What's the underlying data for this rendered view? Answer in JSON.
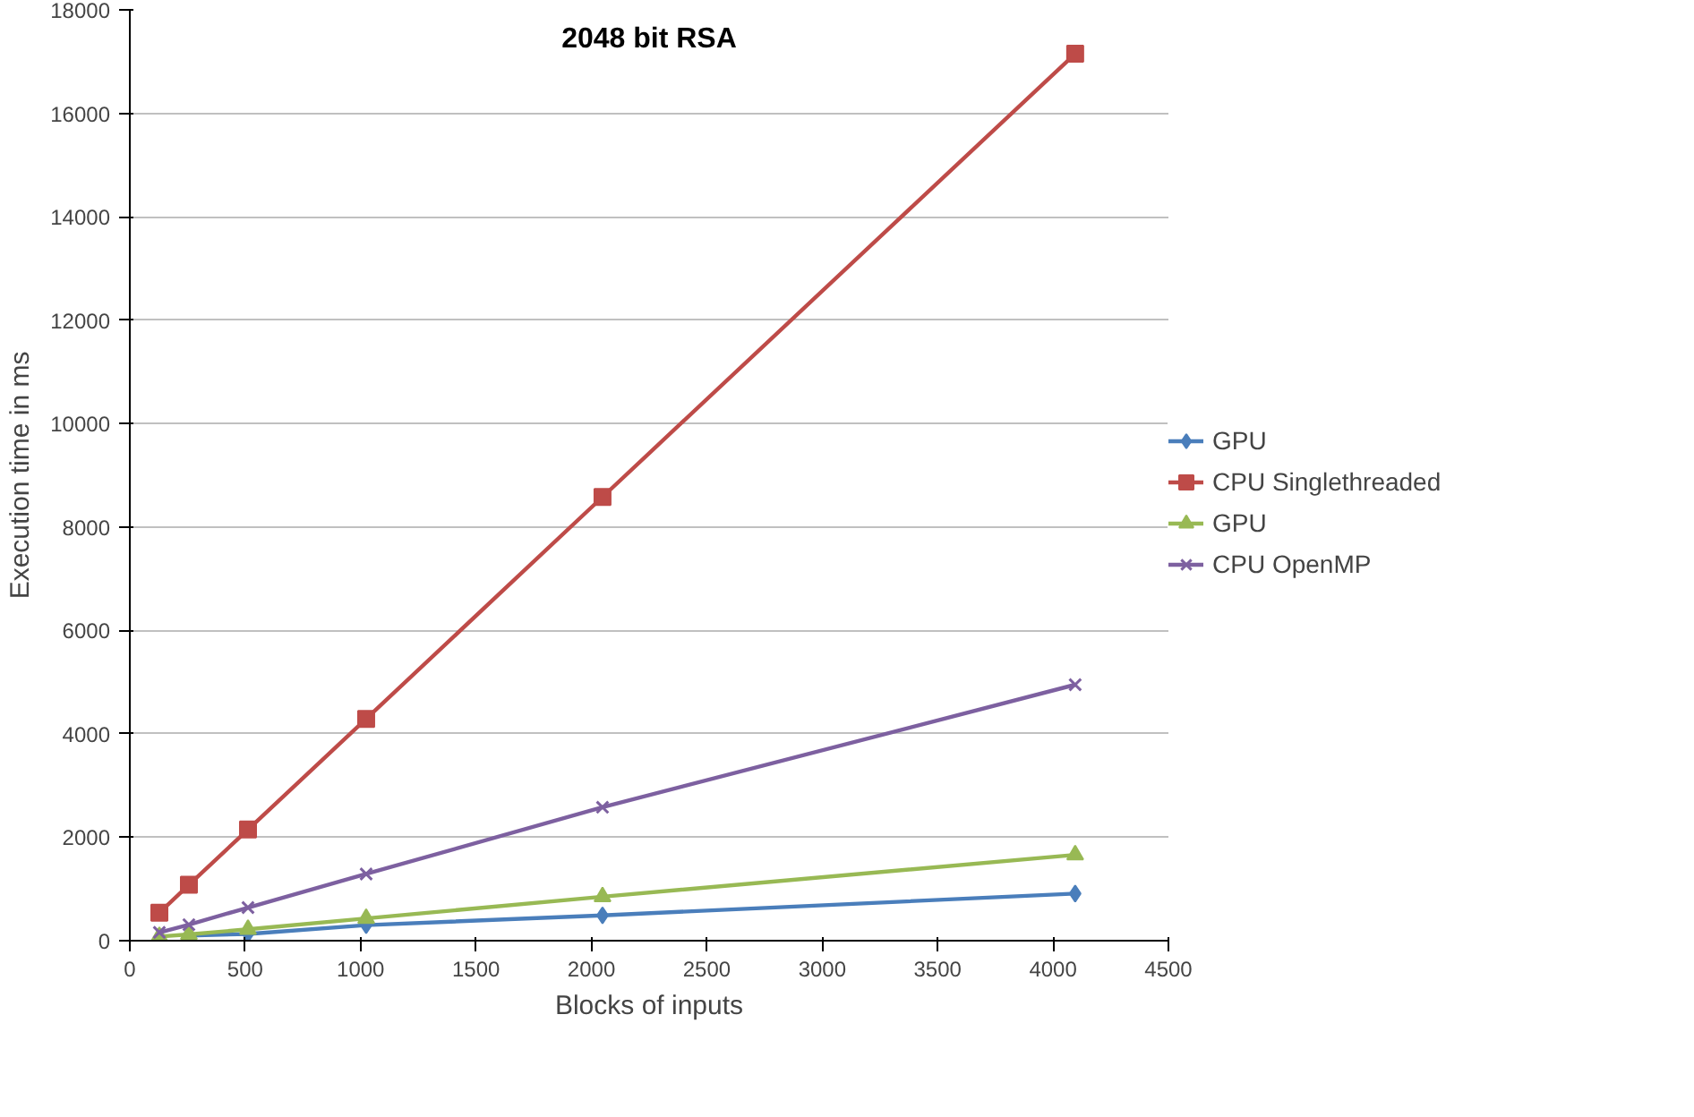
{
  "chart_data": {
    "type": "line",
    "title": "2048 bit RSA",
    "xlabel": "Blocks of inputs",
    "ylabel": "Execution time in ms",
    "x": [
      128,
      256,
      512,
      1024,
      2048,
      4096
    ],
    "xlim": [
      0,
      4500
    ],
    "xticks": [
      0,
      500,
      1000,
      1500,
      2000,
      2500,
      3000,
      3500,
      4000,
      4500
    ],
    "ylim": [
      0,
      18000
    ],
    "yticks": [
      0,
      2000,
      4000,
      6000,
      8000,
      10000,
      12000,
      14000,
      16000,
      18000
    ],
    "grid": "y",
    "legend": "right",
    "series": [
      {
        "name": "GPU",
        "color": "#4a7ebb",
        "marker": "diamond",
        "x": [
          256,
          512,
          1024,
          2048,
          4096
        ],
        "values": [
          100,
          130,
          300,
          490,
          910
        ]
      },
      {
        "name": "CPU Singlethreaded",
        "color": "#be4b48",
        "marker": "square",
        "values": [
          540,
          1080,
          2150,
          4290,
          8580,
          17150
        ]
      },
      {
        "name": "GPU",
        "color": "#98b954",
        "marker": "triangle",
        "values": [
          80,
          120,
          220,
          430,
          850,
          1660
        ]
      },
      {
        "name": "CPU OpenMP",
        "color": "#7d60a0",
        "marker": "cross",
        "values": [
          160,
          310,
          640,
          1290,
          2580,
          4950
        ]
      }
    ]
  }
}
